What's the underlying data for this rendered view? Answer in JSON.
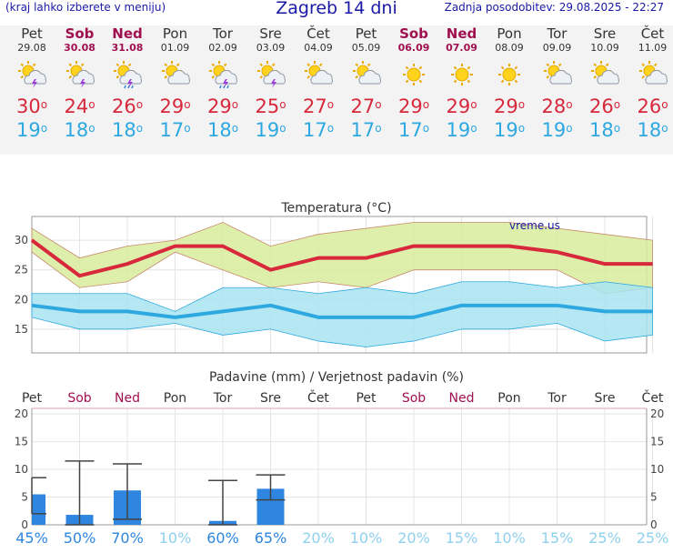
{
  "header": {
    "hint": "(kraj lahko izberete v meniju)",
    "title": "Zagreb 14 dni",
    "updated": "Zadnja posodobitev: 29.08.2025 - 22:27"
  },
  "days": [
    {
      "name": "Pet",
      "date": "29.08",
      "weekend": false,
      "icon": "sun-cloud-storm-icon",
      "tmax": "30",
      "tmin": "19"
    },
    {
      "name": "Sob",
      "date": "30.08",
      "weekend": true,
      "icon": "sun-cloud-storm-icon",
      "tmax": "24",
      "tmin": "18"
    },
    {
      "name": "Ned",
      "date": "31.08",
      "weekend": true,
      "icon": "sun-cloud-rain-storm-icon",
      "tmax": "26",
      "tmin": "18"
    },
    {
      "name": "Pon",
      "date": "01.09",
      "weekend": false,
      "icon": "sun-cloud-icon",
      "tmax": "29",
      "tmin": "17"
    },
    {
      "name": "Tor",
      "date": "02.09",
      "weekend": false,
      "icon": "sun-cloud-rain-storm-icon",
      "tmax": "29",
      "tmin": "18"
    },
    {
      "name": "Sre",
      "date": "03.09",
      "weekend": false,
      "icon": "sun-cloud-storm-icon",
      "tmax": "25",
      "tmin": "19"
    },
    {
      "name": "Čet",
      "date": "04.09",
      "weekend": false,
      "icon": "sun-cloud-icon",
      "tmax": "27",
      "tmin": "17"
    },
    {
      "name": "Pet",
      "date": "05.09",
      "weekend": false,
      "icon": "sun-cloud-icon",
      "tmax": "27",
      "tmin": "17"
    },
    {
      "name": "Sob",
      "date": "06.09",
      "weekend": true,
      "icon": "sun-icon",
      "tmax": "29",
      "tmin": "17"
    },
    {
      "name": "Ned",
      "date": "07.09",
      "weekend": true,
      "icon": "sun-icon",
      "tmax": "29",
      "tmin": "19"
    },
    {
      "name": "Pon",
      "date": "08.09",
      "weekend": false,
      "icon": "sun-icon",
      "tmax": "29",
      "tmin": "19"
    },
    {
      "name": "Tor",
      "date": "09.09",
      "weekend": false,
      "icon": "sun-cloud-icon",
      "tmax": "28",
      "tmin": "19"
    },
    {
      "name": "Sre",
      "date": "10.09",
      "weekend": false,
      "icon": "sun-cloud-icon",
      "tmax": "26",
      "tmin": "18"
    },
    {
      "name": "Čet",
      "date": "11.09",
      "weekend": false,
      "icon": "sun-cloud-icon",
      "tmax": "26",
      "tmin": "18"
    }
  ],
  "colors": {
    "accent": "#1a1aa6",
    "weekend": "#a01050",
    "tmax": "#d8283c",
    "tmin": "#2ea8e0",
    "max_band": "#d8ec9c",
    "min_band": "#a8e4f0",
    "precip_bar": "#2e86e0"
  },
  "chart_data": [
    {
      "type": "line",
      "title": "Temperatura (°C)",
      "watermark": "vreme.us",
      "categories": [
        "Pet",
        "Sob",
        "Ned",
        "Pon",
        "Tor",
        "Sre",
        "Čet",
        "Pet",
        "Sob",
        "Ned",
        "Pon",
        "Tor",
        "Sre",
        "Čet"
      ],
      "ylim": [
        11,
        34
      ],
      "yticks": [
        15,
        20,
        25,
        30
      ],
      "grid": true,
      "series": [
        {
          "role": "max",
          "values": [
            30,
            24,
            26,
            29,
            29,
            25,
            27,
            27,
            29,
            29,
            29,
            28,
            26,
            26
          ],
          "band_high": [
            32,
            27,
            29,
            30,
            33,
            29,
            31,
            32,
            33,
            33,
            33,
            32,
            31,
            30
          ],
          "band_low": [
            28,
            22,
            23,
            28,
            25,
            22,
            23,
            22,
            25,
            25,
            25,
            25,
            21,
            22
          ]
        },
        {
          "role": "min",
          "values": [
            19,
            18,
            18,
            17,
            18,
            19,
            17,
            17,
            17,
            19,
            19,
            19,
            18,
            18
          ],
          "band_high": [
            21,
            21,
            21,
            18,
            22,
            22,
            21,
            22,
            21,
            23,
            23,
            22,
            23,
            22
          ],
          "band_low": [
            17,
            15,
            15,
            16,
            14,
            15,
            13,
            12,
            13,
            15,
            15,
            16,
            13,
            14
          ]
        }
      ]
    },
    {
      "type": "bar",
      "title": "Padavine (mm) / Verjetnost padavin (%)",
      "categories": [
        "Pet",
        "Sob",
        "Ned",
        "Pon",
        "Tor",
        "Sre",
        "Čet",
        "Pet",
        "Sob",
        "Ned",
        "Pon",
        "Tor",
        "Sre",
        "Čet"
      ],
      "weekend": [
        false,
        true,
        true,
        false,
        false,
        false,
        false,
        false,
        true,
        true,
        false,
        false,
        false,
        false
      ],
      "ylim": [
        0,
        21
      ],
      "yticks": [
        0,
        5,
        10,
        15,
        20
      ],
      "values": [
        5.5,
        1.8,
        6.2,
        0,
        0.7,
        6.5,
        0,
        0,
        0,
        0,
        0,
        0,
        0,
        0
      ],
      "error_low": [
        2,
        0,
        1,
        0,
        0,
        4.5,
        0,
        0,
        0,
        0,
        0,
        0,
        0,
        0
      ],
      "error_high": [
        8.5,
        11.5,
        11,
        0,
        8,
        9,
        0,
        0,
        0,
        0,
        0,
        0,
        0,
        0
      ],
      "probability": [
        "45%",
        "50%",
        "70%",
        "10%",
        "60%",
        "65%",
        "20%",
        "10%",
        "20%",
        "15%",
        "10%",
        "15%",
        "25%",
        "25%"
      ],
      "probability_strong": [
        true,
        true,
        true,
        false,
        true,
        true,
        false,
        false,
        false,
        false,
        false,
        false,
        false,
        false
      ]
    }
  ]
}
